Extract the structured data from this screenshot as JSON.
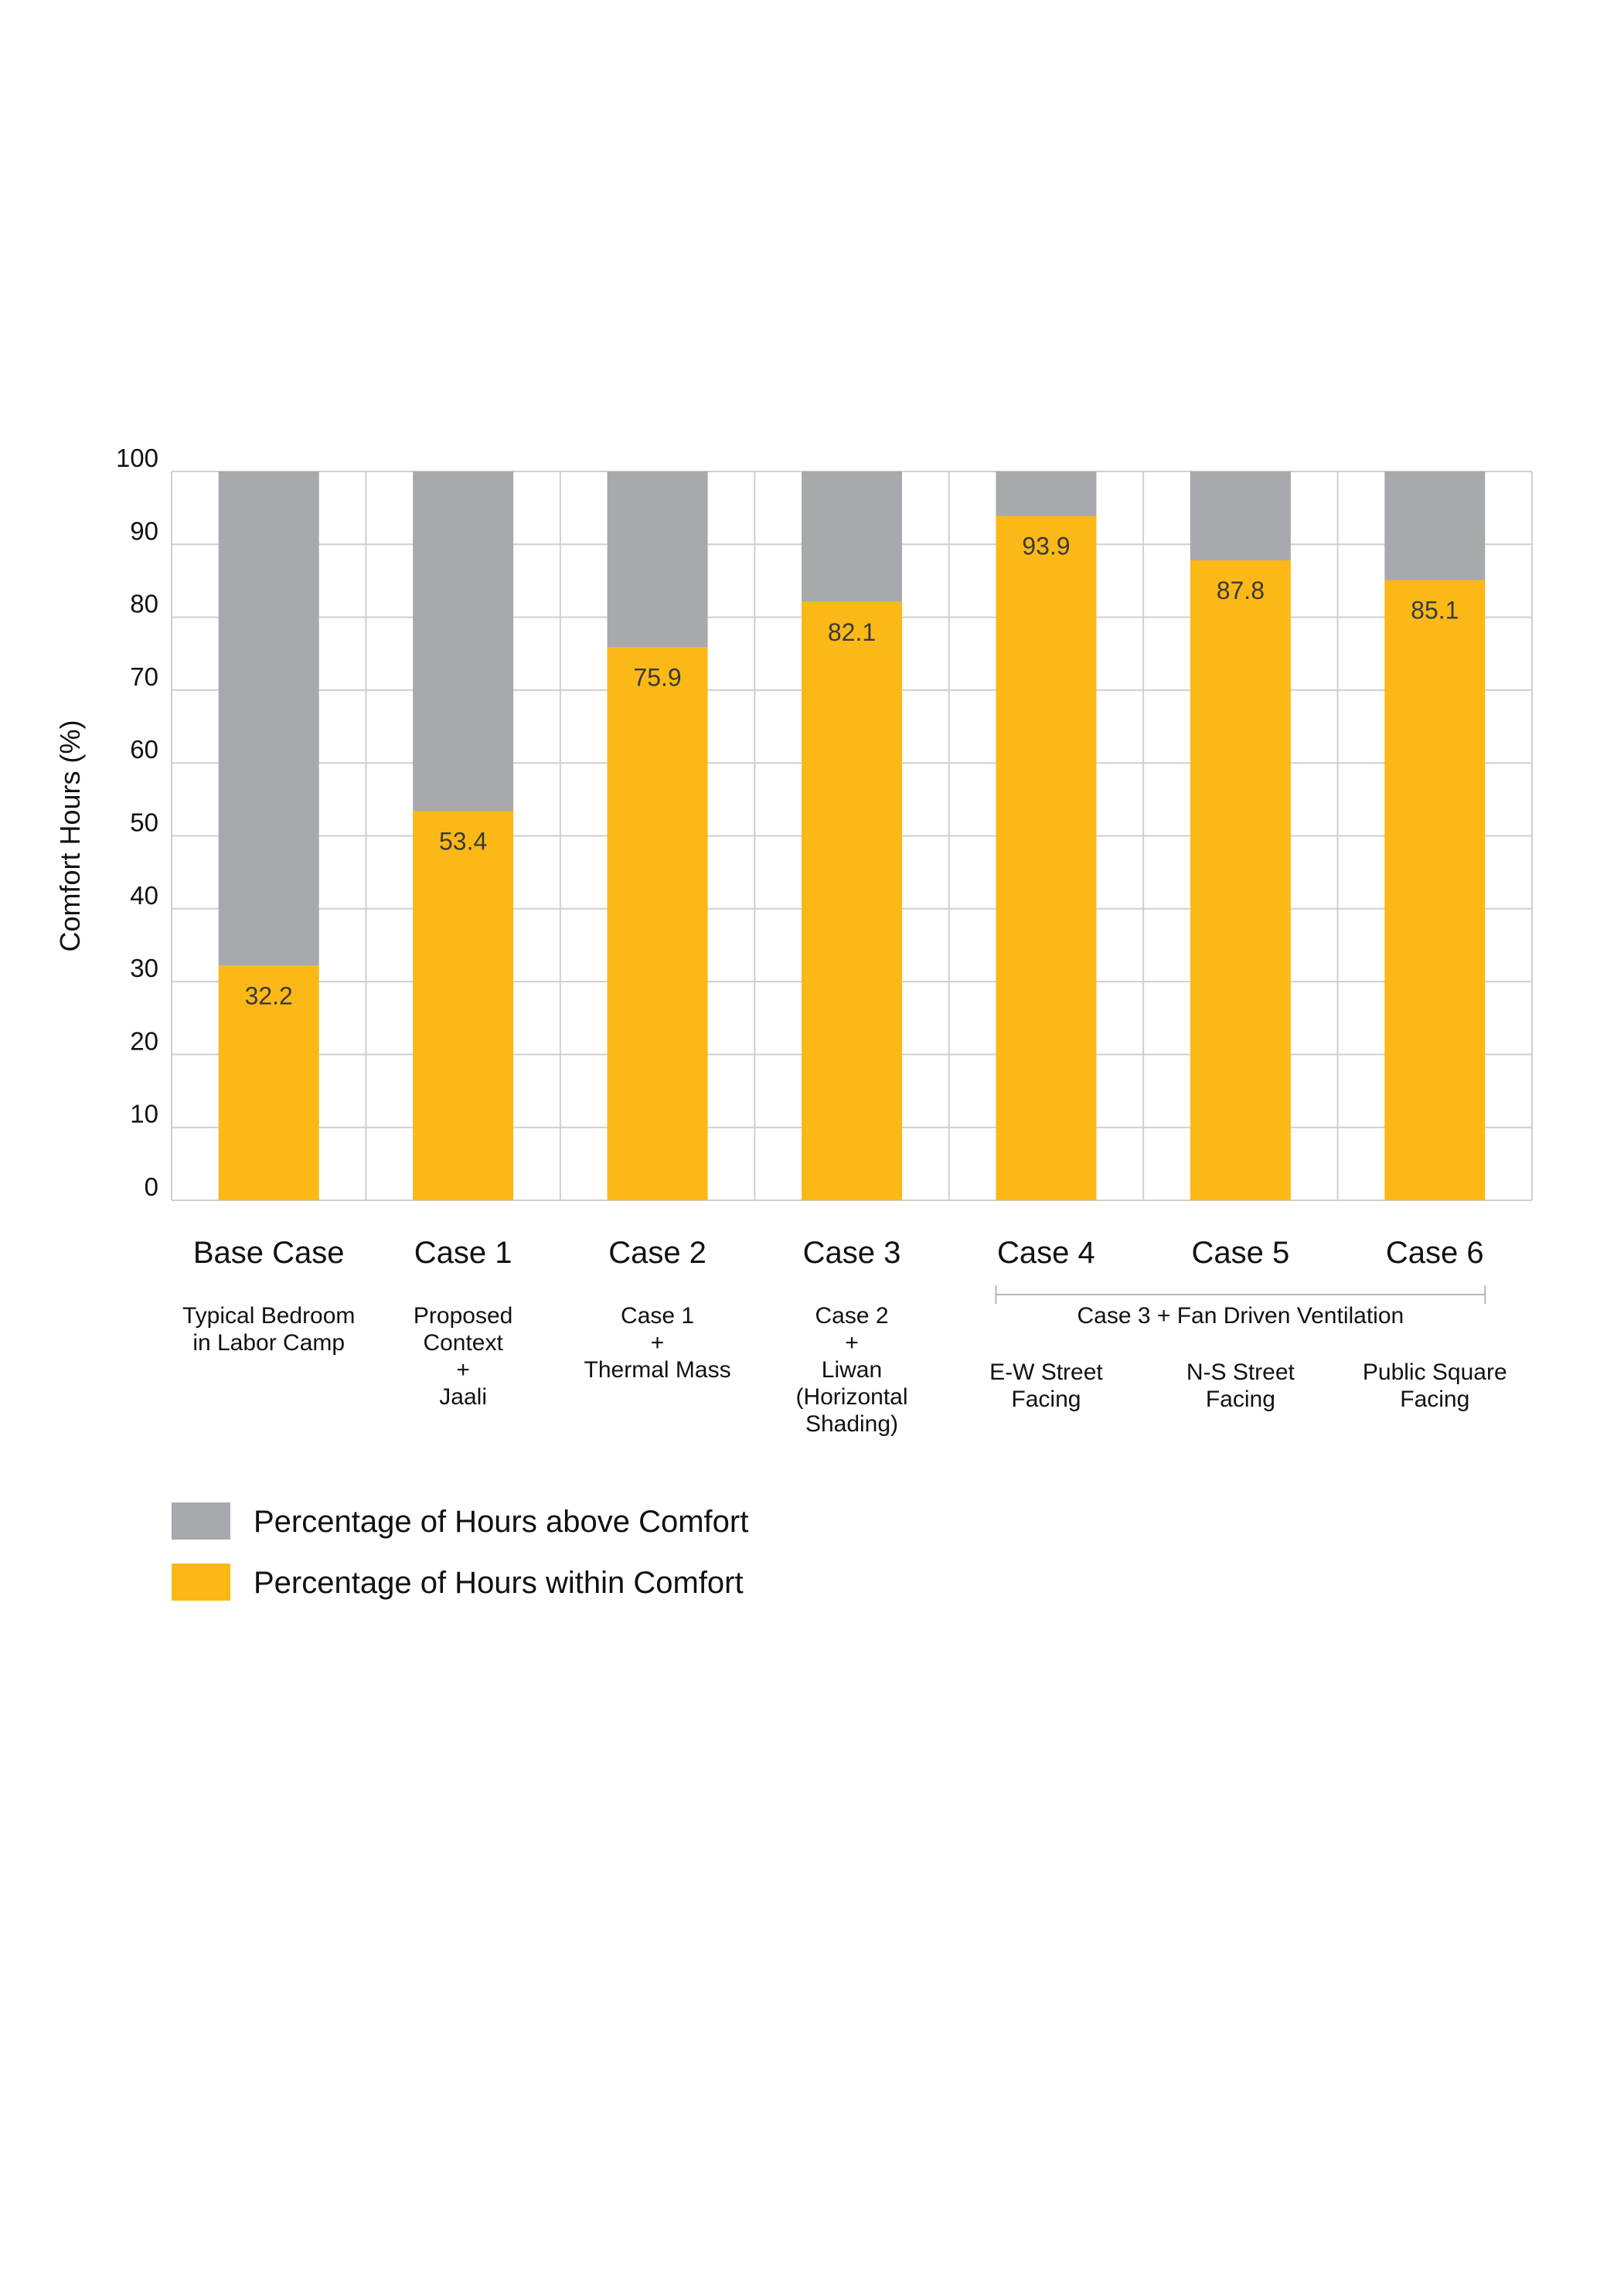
{
  "chart_data": {
    "type": "bar",
    "stacked": true,
    "ylabel": "Comfort Hours (%)",
    "xlabel": "",
    "ylim": [
      0,
      100
    ],
    "ytick_step": 10,
    "grid": true,
    "categories": [
      "Base Case",
      "Case 1",
      "Case 2",
      "Case 3",
      "Case 4",
      "Case 5",
      "Case 6"
    ],
    "descriptions": [
      [
        "Typical Bedroom",
        "in Labor Camp"
      ],
      [
        "Proposed",
        "Context",
        "+",
        "Jaali"
      ],
      [
        "Case 1",
        "+",
        "Thermal Mass"
      ],
      [
        "Case 2",
        "+",
        "Liwan",
        "(Horizontal",
        "Shading)"
      ],
      [
        "E-W Street",
        "Facing"
      ],
      [
        "N-S Street",
        "Facing"
      ],
      [
        "Public Square",
        "Facing"
      ]
    ],
    "group_annotation": {
      "label": "Case 3 + Fan Driven Ventilation",
      "from_category": 4,
      "to_category": 6
    },
    "series": [
      {
        "name": "Percentage of Hours within Comfort",
        "color": "#FBB817",
        "values": [
          32.2,
          53.4,
          75.9,
          82.1,
          93.9,
          87.8,
          85.1
        ],
        "value_labels": [
          "32.2",
          "53.4",
          "75.9",
          "82.1",
          "93.9",
          "87.8",
          "85.1"
        ]
      },
      {
        "name": "Percentage of Hours above Comfort",
        "color": "#A7A9AC",
        "values": [
          67.8,
          46.6,
          24.1,
          17.9,
          6.1,
          12.2,
          14.9
        ]
      }
    ],
    "legend": {
      "placement": "bottom-left",
      "order": [
        "Percentage of Hours above Comfort",
        "Percentage of Hours within Comfort"
      ]
    },
    "colors": {
      "grid": "#CFCFD1",
      "text": "#111111",
      "value_label": "#3A3A3A"
    }
  }
}
